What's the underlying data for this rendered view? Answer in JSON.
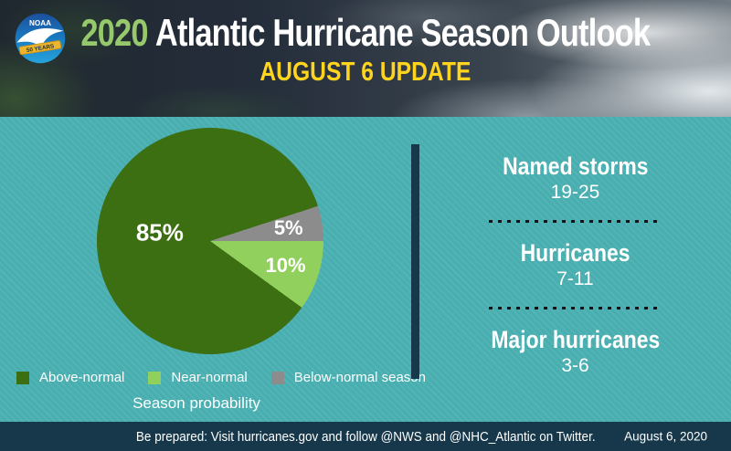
{
  "header": {
    "year": "2020",
    "title_rest": "Atlantic Hurricane Season Outlook",
    "subtitle": "AUGUST 6 UPDATE",
    "logo": {
      "agency": "NOAA",
      "banner": "50 YEARS"
    }
  },
  "chart_data": {
    "type": "pie",
    "title": "Season probability",
    "slices": [
      {
        "label": "Above-normal",
        "value": 85,
        "color": "#3c6e12"
      },
      {
        "label": "Near-normal",
        "value": 10,
        "color": "#92d05e"
      },
      {
        "label": "Below-normal season",
        "value": 5,
        "color": "#8c8c8c"
      }
    ],
    "pie_order": [
      0,
      2,
      1
    ],
    "start_deg": 126,
    "value_suffix": "%",
    "legend_position": "bottom"
  },
  "stats": [
    {
      "label": "Named storms",
      "value": "19-25"
    },
    {
      "label": "Hurricanes",
      "value": "7-11"
    },
    {
      "label": "Major hurricanes",
      "value": "3-6"
    }
  ],
  "footer": {
    "message": "Be prepared: Visit hurricanes.gov and follow @NWS and @NHC_Atlantic on Twitter.",
    "date": "August 6, 2020"
  },
  "colors": {
    "background": "#48aeb0",
    "panel_dark": "#16384a",
    "accent_yellow": "#ffd41e",
    "accent_green": "#96c96b"
  }
}
